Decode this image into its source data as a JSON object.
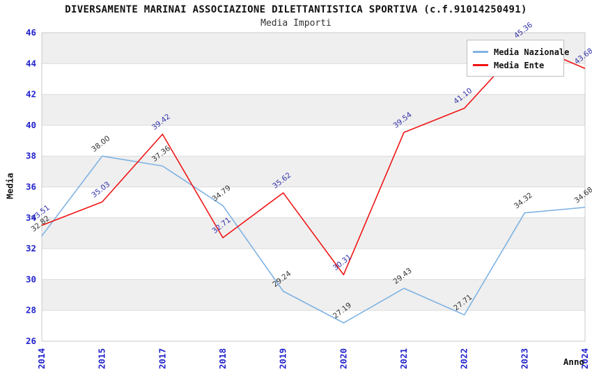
{
  "header": {
    "title": "DIVERSAMENTE MARINAI ASSOCIAZIONE DILETTANTISTICA SPORTIVA (c.f.91014250491)",
    "subtitle": "Media Importi"
  },
  "chart_data": {
    "type": "line",
    "title": "DIVERSAMENTE MARINAI ASSOCIAZIONE DILETTANTISTICA SPORTIVA (c.f.91014250491)",
    "subtitle": "Media Importi",
    "xlabel": "Anno",
    "ylabel": "Media",
    "categories": [
      "2014",
      "2015",
      "2017",
      "2018",
      "2019",
      "2020",
      "2021",
      "2022",
      "2023",
      "2024"
    ],
    "series": [
      {
        "name": "Media Nazionale",
        "color": "#7EB2E3",
        "label_color": "#333333",
        "values": [
          32.82,
          38.0,
          37.36,
          34.79,
          29.24,
          27.19,
          29.43,
          27.71,
          34.32,
          34.68
        ]
      },
      {
        "name": "Media Ente",
        "color": "#F01414",
        "label_color": "#3333AA",
        "values": [
          33.51,
          35.03,
          39.42,
          32.71,
          35.62,
          30.31,
          39.54,
          41.1,
          45.36,
          43.68
        ]
      }
    ],
    "ylim": [
      26,
      46
    ],
    "ytick_step": 2,
    "yticks": [
      26,
      28,
      30,
      32,
      34,
      36,
      38,
      40,
      42,
      44,
      46
    ],
    "grid": "horizontal-bands-alternating",
    "legend_position": "top-right",
    "style": {
      "band_color": "#EFEFEF",
      "grid_color": "#DCDCDC",
      "border_color": "#C8C8C8",
      "tick_label_color": "#2222CC"
    }
  }
}
